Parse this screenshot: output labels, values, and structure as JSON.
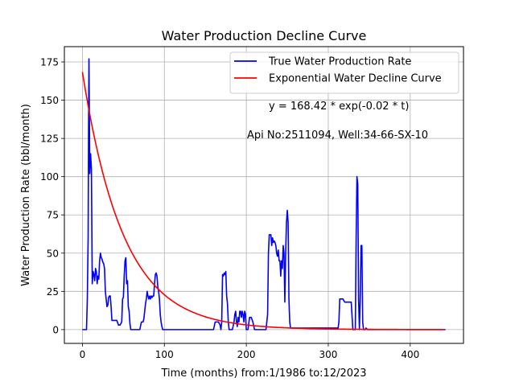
{
  "chart_data": {
    "type": "line",
    "title": "Water Production Decline Curve",
    "xlabel": "Time (months) from:1/1986 to:12/2023",
    "ylabel": "Water Production Rate (bbl/month)",
    "xlim": [
      -22,
      465
    ],
    "ylim": [
      -9,
      185
    ],
    "xticks": [
      0,
      100,
      200,
      300,
      400
    ],
    "yticks": [
      0,
      25,
      50,
      75,
      100,
      125,
      150,
      175
    ],
    "grid": true,
    "legend_position": "top-right",
    "annotations": {
      "equation": "y = 168.42 * exp(-0.02 * t)",
      "well_info": "Api No:2511094, Well:34-66-SX-10"
    },
    "series": [
      {
        "name": "True Water Production Rate",
        "color": "#0000ff",
        "points": [
          [
            0,
            0
          ],
          [
            5,
            0
          ],
          [
            6,
            20
          ],
          [
            7,
            60
          ],
          [
            7.5,
            130
          ],
          [
            8,
            177
          ],
          [
            8.5,
            140
          ],
          [
            9,
            102
          ],
          [
            10,
            115
          ],
          [
            11,
            105
          ],
          [
            12,
            30
          ],
          [
            13,
            38
          ],
          [
            14,
            36
          ],
          [
            15,
            32
          ],
          [
            16,
            40
          ],
          [
            17,
            38
          ],
          [
            18,
            30
          ],
          [
            19,
            35
          ],
          [
            20,
            33
          ],
          [
            21,
            45
          ],
          [
            22,
            50
          ],
          [
            23,
            47
          ],
          [
            24,
            46
          ],
          [
            25,
            44
          ],
          [
            26,
            43
          ],
          [
            27,
            40
          ],
          [
            28,
            25
          ],
          [
            29,
            20
          ],
          [
            30,
            15
          ],
          [
            31,
            16
          ],
          [
            32,
            21
          ],
          [
            33,
            22
          ],
          [
            34,
            22
          ],
          [
            35,
            15
          ],
          [
            36,
            6
          ],
          [
            38,
            6
          ],
          [
            40,
            6
          ],
          [
            42,
            6
          ],
          [
            44,
            3
          ],
          [
            46,
            3
          ],
          [
            48,
            5
          ],
          [
            49,
            20
          ],
          [
            50,
            21
          ],
          [
            51,
            35
          ],
          [
            52,
            45
          ],
          [
            53,
            47
          ],
          [
            54,
            30
          ],
          [
            55,
            32
          ],
          [
            56,
            15
          ],
          [
            57,
            12
          ],
          [
            58,
            4
          ],
          [
            59,
            0
          ],
          [
            70,
            0
          ],
          [
            72,
            5
          ],
          [
            74,
            5
          ],
          [
            75,
            7
          ],
          [
            76,
            12
          ],
          [
            77,
            17
          ],
          [
            78,
            20
          ],
          [
            79,
            25
          ],
          [
            80,
            22
          ],
          [
            81,
            20
          ],
          [
            82,
            22
          ],
          [
            83,
            20
          ],
          [
            84,
            22
          ],
          [
            85,
            21
          ],
          [
            86,
            22
          ],
          [
            87,
            22
          ],
          [
            88,
            30
          ],
          [
            89,
            36
          ],
          [
            90,
            37
          ],
          [
            91,
            35
          ],
          [
            92,
            28
          ],
          [
            93,
            25
          ],
          [
            94,
            20
          ],
          [
            95,
            10
          ],
          [
            96,
            5
          ],
          [
            97,
            2
          ],
          [
            98,
            0
          ],
          [
            160,
            0
          ],
          [
            162,
            5
          ],
          [
            164,
            5
          ],
          [
            166,
            5
          ],
          [
            168,
            3
          ],
          [
            169,
            0
          ],
          [
            170,
            5
          ],
          [
            171,
            36
          ],
          [
            172,
            35
          ],
          [
            173,
            37
          ],
          [
            174,
            36
          ],
          [
            175,
            38
          ],
          [
            176,
            22
          ],
          [
            177,
            17
          ],
          [
            178,
            5
          ],
          [
            179,
            0
          ],
          [
            183,
            0
          ],
          [
            185,
            5
          ],
          [
            186,
            10
          ],
          [
            187,
            12
          ],
          [
            188,
            5
          ],
          [
            189,
            2
          ],
          [
            190,
            8
          ],
          [
            191,
            5
          ],
          [
            192,
            12
          ],
          [
            193,
            12
          ],
          [
            194,
            8
          ],
          [
            195,
            12
          ],
          [
            196,
            10
          ],
          [
            197,
            5
          ],
          [
            198,
            12
          ],
          [
            199,
            10
          ],
          [
            200,
            0
          ],
          [
            202,
            0
          ],
          [
            204,
            8
          ],
          [
            206,
            8
          ],
          [
            208,
            5
          ],
          [
            210,
            0
          ],
          [
            224,
            0
          ],
          [
            226,
            10
          ],
          [
            227,
            50
          ],
          [
            228,
            62
          ],
          [
            229,
            62
          ],
          [
            230,
            62
          ],
          [
            231,
            55
          ],
          [
            232,
            60
          ],
          [
            233,
            57
          ],
          [
            234,
            58
          ],
          [
            235,
            57
          ],
          [
            236,
            55
          ],
          [
            237,
            50
          ],
          [
            238,
            48
          ],
          [
            239,
            52
          ],
          [
            240,
            45
          ],
          [
            241,
            45
          ],
          [
            242,
            35
          ],
          [
            243,
            45
          ],
          [
            244,
            40
          ],
          [
            245,
            55
          ],
          [
            246,
            50
          ],
          [
            247,
            18
          ],
          [
            248,
            50
          ],
          [
            249,
            70
          ],
          [
            250,
            78
          ],
          [
            251,
            70
          ],
          [
            252,
            20
          ],
          [
            253,
            5
          ],
          [
            254,
            1
          ],
          [
            256,
            1
          ],
          [
            260,
            1
          ],
          [
            280,
            1
          ],
          [
            300,
            1
          ],
          [
            312,
            1
          ],
          [
            313,
            5
          ],
          [
            314,
            20
          ],
          [
            316,
            20
          ],
          [
            318,
            20
          ],
          [
            320,
            18
          ],
          [
            322,
            18
          ],
          [
            324,
            18
          ],
          [
            326,
            18
          ],
          [
            328,
            18
          ],
          [
            330,
            0
          ],
          [
            333,
            0
          ],
          [
            334,
            60
          ],
          [
            335,
            100
          ],
          [
            336,
            95
          ],
          [
            337,
            20
          ],
          [
            338,
            0
          ],
          [
            339,
            20
          ],
          [
            340,
            55
          ],
          [
            341,
            55
          ],
          [
            342,
            5
          ],
          [
            343,
            0
          ],
          [
            345,
            0
          ],
          [
            346,
            1
          ],
          [
            348,
            0
          ],
          [
            350,
            0
          ],
          [
            360,
            0
          ],
          [
            380,
            0
          ],
          [
            400,
            0
          ],
          [
            420,
            0
          ],
          [
            443,
            0
          ]
        ]
      },
      {
        "name": "Exponential Water Decline Curve",
        "color": "#ff0000",
        "model": {
          "a": 168.42,
          "b": -0.02
        },
        "t_range": [
          0,
          443
        ]
      }
    ]
  }
}
